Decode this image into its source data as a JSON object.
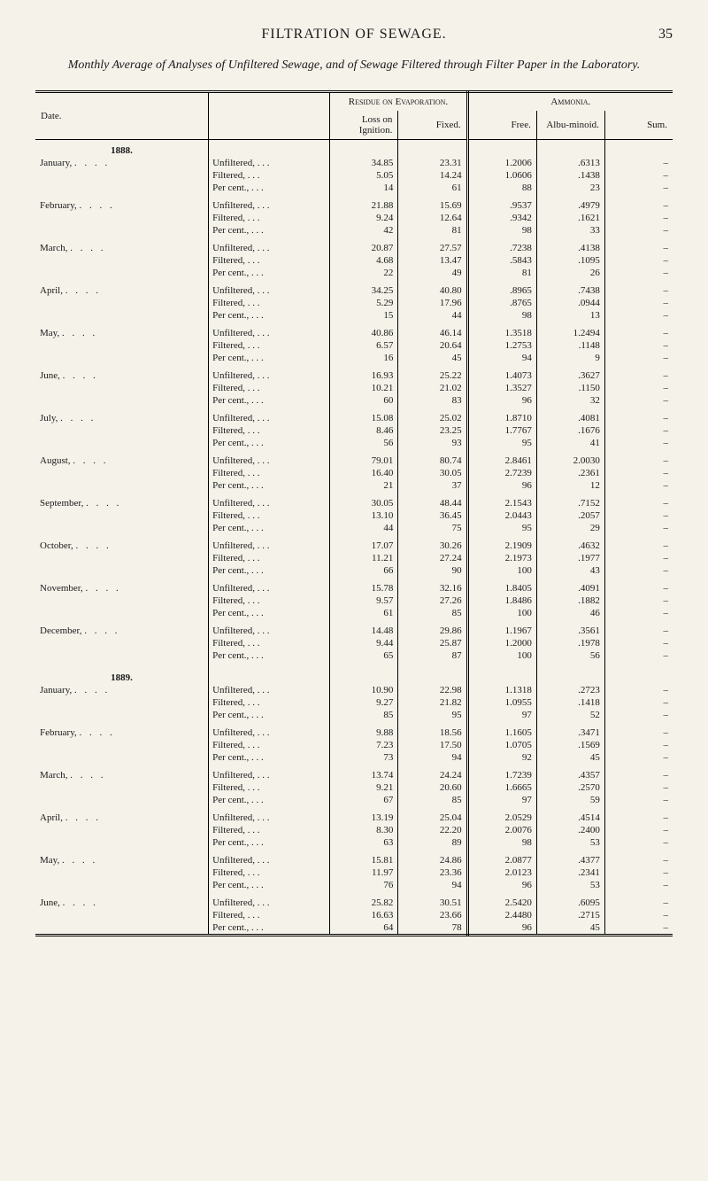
{
  "page": {
    "running_head": "FILTRATION OF SEWAGE.",
    "number": "35",
    "caption": "Monthly Average of Analyses of Unfiltered Sewage, and of Sewage Filtered through Filter Paper in the Laboratory."
  },
  "table": {
    "headers": {
      "date": "Date.",
      "residue": "Residue on Evaporation.",
      "ammonia": "Ammonia.",
      "loss": "Loss on Ignition.",
      "fixed": "Fixed.",
      "free": "Free.",
      "albu": "Albu-minoid.",
      "sum": "Sum."
    },
    "measurements": [
      "Unfiltered,",
      "Filtered,",
      "Per cent.,"
    ],
    "dash": "–",
    "years": [
      {
        "label": "1888.",
        "months": [
          {
            "name": "January,",
            "rows": [
              [
                "34.85",
                "23.31",
                "1.2006",
                ".6313",
                "–"
              ],
              [
                "5.05",
                "14.24",
                "1.0606",
                ".1438",
                "–"
              ],
              [
                "14",
                "61",
                "88",
                "23",
                "–"
              ]
            ]
          },
          {
            "name": "February,",
            "rows": [
              [
                "21.88",
                "15.69",
                ".9537",
                ".4979",
                "–"
              ],
              [
                "9.24",
                "12.64",
                ".9342",
                ".1621",
                "–"
              ],
              [
                "42",
                "81",
                "98",
                "33",
                "–"
              ]
            ]
          },
          {
            "name": "March,",
            "rows": [
              [
                "20.87",
                "27.57",
                ".7238",
                ".4138",
                "–"
              ],
              [
                "4.68",
                "13.47",
                ".5843",
                ".1095",
                "–"
              ],
              [
                "22",
                "49",
                "81",
                "26",
                "–"
              ]
            ]
          },
          {
            "name": "April,",
            "rows": [
              [
                "34.25",
                "40.80",
                ".8965",
                ".7438",
                "–"
              ],
              [
                "5.29",
                "17.96",
                ".8765",
                ".0944",
                "–"
              ],
              [
                "15",
                "44",
                "98",
                "13",
                "–"
              ]
            ]
          },
          {
            "name": "May,",
            "rows": [
              [
                "40.86",
                "46.14",
                "1.3518",
                "1.2494",
                "–"
              ],
              [
                "6.57",
                "20.64",
                "1.2753",
                ".1148",
                "–"
              ],
              [
                "16",
                "45",
                "94",
                "9",
                "–"
              ]
            ]
          },
          {
            "name": "June,",
            "rows": [
              [
                "16.93",
                "25.22",
                "1.4073",
                ".3627",
                "–"
              ],
              [
                "10.21",
                "21.02",
                "1.3527",
                ".1150",
                "–"
              ],
              [
                "60",
                "83",
                "96",
                "32",
                "–"
              ]
            ]
          },
          {
            "name": "July,",
            "rows": [
              [
                "15.08",
                "25.02",
                "1.8710",
                ".4081",
                "–"
              ],
              [
                "8.46",
                "23.25",
                "1.7767",
                ".1676",
                "–"
              ],
              [
                "56",
                "93",
                "95",
                "41",
                "–"
              ]
            ]
          },
          {
            "name": "August,",
            "rows": [
              [
                "79.01",
                "80.74",
                "2.8461",
                "2.0030",
                "–"
              ],
              [
                "16.40",
                "30.05",
                "2.7239",
                ".2361",
                "–"
              ],
              [
                "21",
                "37",
                "96",
                "12",
                "–"
              ]
            ]
          },
          {
            "name": "September,",
            "rows": [
              [
                "30.05",
                "48.44",
                "2.1543",
                ".7152",
                "–"
              ],
              [
                "13.10",
                "36.45",
                "2.0443",
                ".2057",
                "–"
              ],
              [
                "44",
                "75",
                "95",
                "29",
                "–"
              ]
            ]
          },
          {
            "name": "October,",
            "rows": [
              [
                "17.07",
                "30.26",
                "2.1909",
                ".4632",
                "–"
              ],
              [
                "11.21",
                "27.24",
                "2.1973",
                ".1977",
                "–"
              ],
              [
                "66",
                "90",
                "100",
                "43",
                "–"
              ]
            ]
          },
          {
            "name": "November,",
            "rows": [
              [
                "15.78",
                "32.16",
                "1.8405",
                ".4091",
                "–"
              ],
              [
                "9.57",
                "27.26",
                "1.8486",
                ".1882",
                "–"
              ],
              [
                "61",
                "85",
                "100",
                "46",
                "–"
              ]
            ]
          },
          {
            "name": "December,",
            "rows": [
              [
                "14.48",
                "29.86",
                "1.1967",
                ".3561",
                "–"
              ],
              [
                "9.44",
                "25.87",
                "1.2000",
                ".1978",
                "–"
              ],
              [
                "65",
                "87",
                "100",
                "56",
                "–"
              ]
            ]
          }
        ]
      },
      {
        "label": "1889.",
        "months": [
          {
            "name": "January,",
            "rows": [
              [
                "10.90",
                "22.98",
                "1.1318",
                ".2723",
                "–"
              ],
              [
                "9.27",
                "21.82",
                "1.0955",
                ".1418",
                "–"
              ],
              [
                "85",
                "95",
                "97",
                "52",
                "–"
              ]
            ]
          },
          {
            "name": "February,",
            "rows": [
              [
                "9.88",
                "18.56",
                "1.1605",
                ".3471",
                "–"
              ],
              [
                "7.23",
                "17.50",
                "1.0705",
                ".1569",
                "–"
              ],
              [
                "73",
                "94",
                "92",
                "45",
                "–"
              ]
            ]
          },
          {
            "name": "March,",
            "rows": [
              [
                "13.74",
                "24.24",
                "1.7239",
                ".4357",
                "–"
              ],
              [
                "9.21",
                "20.60",
                "1.6665",
                ".2570",
                "–"
              ],
              [
                "67",
                "85",
                "97",
                "59",
                "–"
              ]
            ]
          },
          {
            "name": "April,",
            "rows": [
              [
                "13.19",
                "25.04",
                "2.0529",
                ".4514",
                "–"
              ],
              [
                "8.30",
                "22.20",
                "2.0076",
                ".2400",
                "–"
              ],
              [
                "63",
                "89",
                "98",
                "53",
                "–"
              ]
            ]
          },
          {
            "name": "May,",
            "rows": [
              [
                "15.81",
                "24.86",
                "2.0877",
                ".4377",
                "–"
              ],
              [
                "11.97",
                "23.36",
                "2.0123",
                ".2341",
                "–"
              ],
              [
                "76",
                "94",
                "96",
                "53",
                "–"
              ]
            ]
          },
          {
            "name": "June,",
            "rows": [
              [
                "25.82",
                "30.51",
                "2.5420",
                ".6095",
                "–"
              ],
              [
                "16.63",
                "23.66",
                "2.4480",
                ".2715",
                "–"
              ],
              [
                "64",
                "78",
                "96",
                "45",
                "–"
              ]
            ]
          }
        ]
      }
    ]
  },
  "style": {
    "background": "#f5f2ea",
    "text_color": "#1a1a1a",
    "font_family": "Times New Roman",
    "body_fontsize": 12,
    "table_fontsize": 11
  }
}
